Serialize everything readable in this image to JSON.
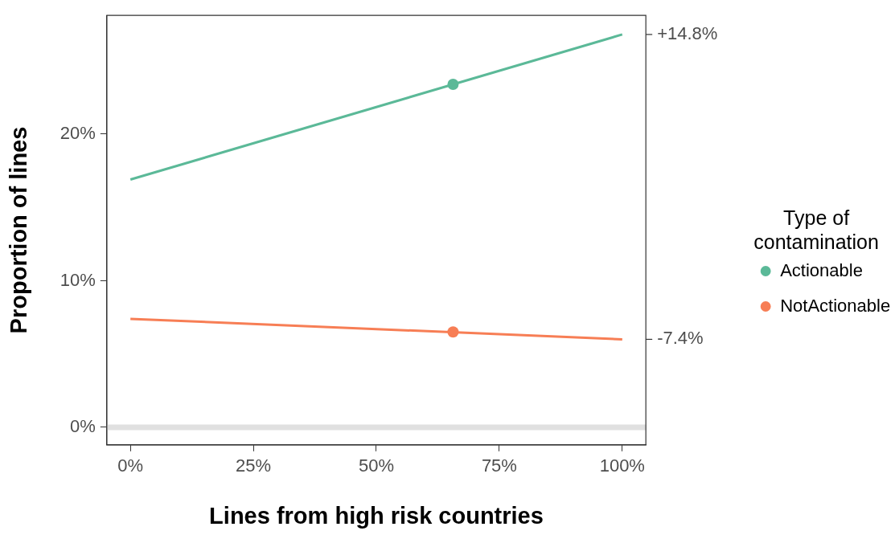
{
  "chart_data": {
    "type": "line",
    "xlabel": "Lines from high risk countries",
    "ylabel": "Proportion of lines",
    "legend_title": "Type of contamination",
    "legend": "right",
    "grid": false,
    "marker": "none",
    "line_style": "solid",
    "xlim": [
      -4.8,
      104.8
    ],
    "xticks": [
      {
        "value": 0,
        "label": "0%"
      },
      {
        "value": 25,
        "label": "25%"
      },
      {
        "value": 50,
        "label": "50%"
      },
      {
        "value": 75,
        "label": "75%"
      },
      {
        "value": 100,
        "label": "100%"
      }
    ],
    "ylim": [
      -1.2,
      28.1
    ],
    "yticks": [
      {
        "value": 0,
        "label": "0%"
      },
      {
        "value": 10,
        "label": "10%"
      },
      {
        "value": 20,
        "label": "20%"
      }
    ],
    "annotations": [
      {
        "text": "+14.8%",
        "x": 100,
        "y": 26.8
      },
      {
        "text": "-7.4%",
        "x": 100,
        "y": 6.0
      }
    ],
    "ref_lines": [
      {
        "axis": "y",
        "value": 0,
        "color": "#e0e0e0"
      }
    ],
    "series": [
      {
        "name": "Actionable",
        "color": "#5bb998",
        "x": [
          0,
          100
        ],
        "values": [
          16.9,
          26.8
        ]
      },
      {
        "name": "NotActionable",
        "color": "#f77e55",
        "x": [
          0,
          100
        ],
        "values": [
          7.4,
          6.0
        ]
      },
      {
        "type": "scatter",
        "color": "#5bb998",
        "marker": "circle",
        "x": [
          65.6
        ],
        "values": [
          23.4
        ]
      },
      {
        "type": "scatter",
        "color": "#f77e55",
        "marker": "circle",
        "x": [
          65.6
        ],
        "values": [
          6.5
        ]
      }
    ]
  }
}
